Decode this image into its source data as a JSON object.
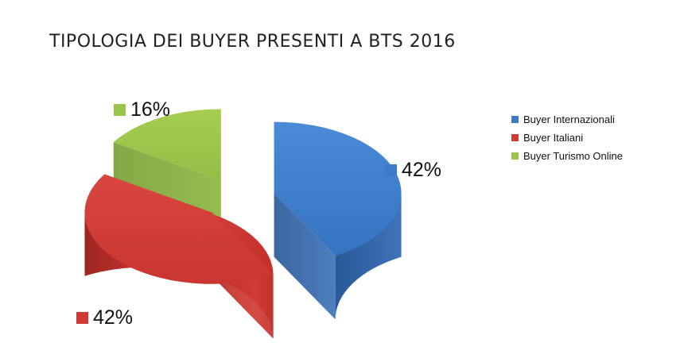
{
  "chart_data": {
    "type": "pie",
    "title": "TIPOLOGIA DEI BUYER PRESENTI A BTS 2016",
    "categories": [
      "Buyer Internazionali",
      "Buyer Italiani",
      "Buyer Turismo Online"
    ],
    "values": [
      42,
      42,
      16
    ],
    "labels": [
      "42%",
      "42%",
      "16%"
    ],
    "colors": [
      "#3b7bc8",
      "#cf3a35",
      "#9cc44a"
    ],
    "legend_position": "right",
    "style": "3d-exploded"
  }
}
